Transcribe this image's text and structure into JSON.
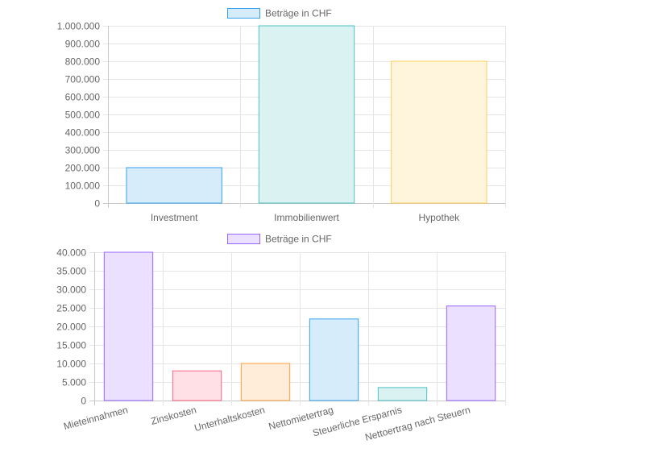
{
  "chart_data": [
    {
      "type": "bar",
      "categories": [
        "Investment",
        "Immobilienwert",
        "Hypothek"
      ],
      "series": [
        {
          "name": "Beträge in CHF",
          "values": [
            200000,
            1000000,
            800000
          ]
        }
      ],
      "ylim": [
        0,
        1000000
      ],
      "yticks": [
        "0",
        "100.000",
        "200.000",
        "300.000",
        "400.000",
        "500.000",
        "600.000",
        "700.000",
        "800.000",
        "900.000",
        "1.000.000"
      ],
      "grid": true,
      "legend_position": "top",
      "legend_color": "#36a2eb",
      "bar_colors": [
        {
          "fill": "#d7ecfb",
          "stroke": "#36a2eb"
        },
        {
          "fill": "#dbf2f2",
          "stroke": "#4bc0c0"
        },
        {
          "fill": "#fff5dd",
          "stroke": "#ffcd56"
        }
      ]
    },
    {
      "type": "bar",
      "categories": [
        "Mieteinnahmen",
        "Zinskosten",
        "Unterhaltskosten",
        "Nettomietertrag",
        "Steuerliche Ersparnis",
        "Nettoertrag nach Steuern"
      ],
      "series": [
        {
          "name": "Beträge in CHF",
          "values": [
            40000,
            8000,
            10000,
            22000,
            3500,
            25500
          ]
        }
      ],
      "ylim": [
        0,
        40000
      ],
      "yticks": [
        "0",
        "5.000",
        "10.000",
        "15.000",
        "20.000",
        "25.000",
        "30.000",
        "35.000",
        "40.000"
      ],
      "grid": true,
      "legend_position": "top",
      "legend_color": "#9966ff",
      "bar_colors": [
        {
          "fill": "#ebe0ff",
          "stroke": "#9966ff"
        },
        {
          "fill": "#ffe0e6",
          "stroke": "#ff6384"
        },
        {
          "fill": "#ffecd9",
          "stroke": "#ff9f40"
        },
        {
          "fill": "#d7ecfb",
          "stroke": "#36a2eb"
        },
        {
          "fill": "#dbf2f2",
          "stroke": "#4bc0c0"
        },
        {
          "fill": "#ebe0ff",
          "stroke": "#9966ff"
        }
      ]
    }
  ]
}
